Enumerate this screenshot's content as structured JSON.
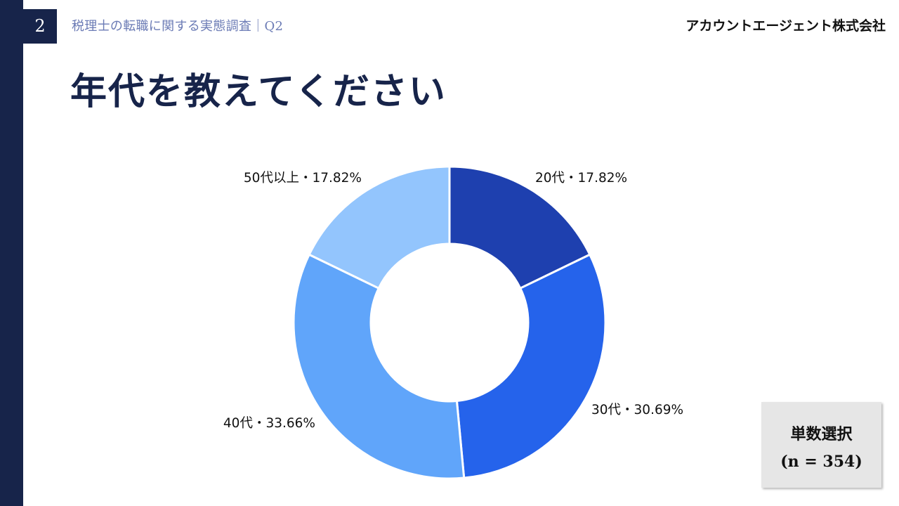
{
  "header": {
    "slide_number": "2",
    "subtitle": "税理士の転職に関する実態調査｜Q2",
    "company": "アカウントエージェント株式会社"
  },
  "main": {
    "title": "年代を教えてください"
  },
  "answer_box": {
    "type": "単数選択",
    "count": "(n = 354)"
  },
  "colors": {
    "navy": "#17244a",
    "subtitle": "#6b7bb5"
  },
  "chart_data": {
    "type": "pie",
    "style": "donut",
    "title": "",
    "slices": [
      {
        "label": "20代",
        "value": 17.82,
        "display": "20代・17.82%",
        "color": "#1e40af"
      },
      {
        "label": "30代",
        "value": 30.69,
        "display": "30代・30.69%",
        "color": "#2563eb"
      },
      {
        "label": "40代",
        "value": 33.66,
        "display": "40代・33.66%",
        "color": "#60a5fa"
      },
      {
        "label": "50代以上",
        "value": 17.82,
        "display": "50代以上・17.82%",
        "color": "#93c5fd"
      }
    ]
  }
}
